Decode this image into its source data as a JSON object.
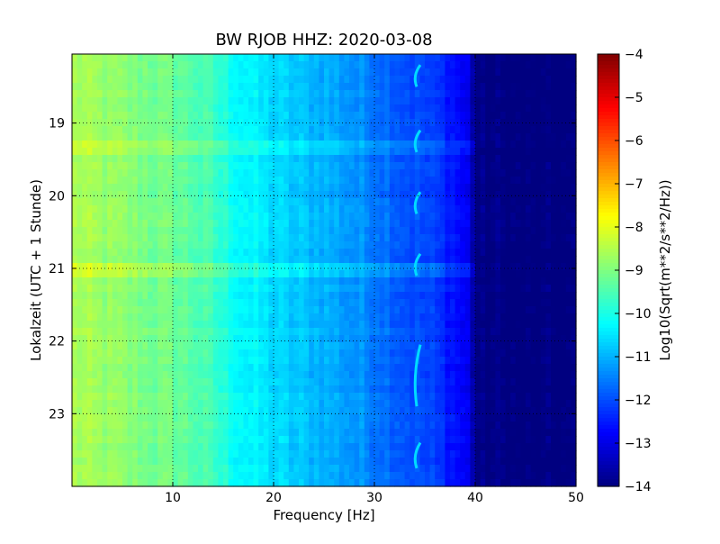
{
  "chart_data": {
    "type": "heatmap",
    "title": "BW RJOB HHZ: 2020-03-08",
    "xlabel": "Frequency [Hz]",
    "ylabel": "Lokalzeit (UTC + 1 Stunde)",
    "xlim": [
      0,
      50
    ],
    "ylim": [
      24,
      18.05
    ],
    "x_ticks": [
      10,
      20,
      30,
      40,
      50
    ],
    "x_tick_labels": [
      "10",
      "20",
      "30",
      "40",
      "50"
    ],
    "y_ticks": [
      19,
      20,
      21,
      22,
      23
    ],
    "y_tick_labels": [
      "19",
      "20",
      "21",
      "22",
      "23"
    ],
    "grid": true,
    "colorbar": {
      "label": "Log10(Sqrt(m**2/s**2/Hz))",
      "range": [
        -14,
        -4
      ],
      "ticks": [
        -4,
        -5,
        -6,
        -7,
        -8,
        -9,
        -10,
        -11,
        -12,
        -13,
        -14
      ],
      "tick_labels": [
        "−4",
        "−5",
        "−6",
        "−7",
        "−8",
        "−9",
        "−10",
        "−11",
        "−12",
        "−13",
        "−14"
      ],
      "colormap": "jet"
    },
    "spectrum_profile": {
      "frequency_hz": [
        0,
        2,
        5,
        8,
        10,
        12,
        14,
        16,
        18,
        20,
        22,
        25,
        28,
        30,
        33,
        36,
        38,
        39.5,
        40,
        42,
        45,
        50
      ],
      "value": [
        -8.6,
        -8.7,
        -8.9,
        -9.1,
        -9.2,
        -9.4,
        -9.7,
        -10.1,
        -10.4,
        -10.6,
        -10.8,
        -11.0,
        -11.3,
        -11.5,
        -11.9,
        -12.2,
        -12.6,
        -13.0,
        -14.0,
        -14.0,
        -14.1,
        -14.1
      ]
    },
    "horizontal_bands": [
      {
        "time_hour": 19.3,
        "boost": 0.35
      },
      {
        "time_hour": 21.05,
        "boost": 0.45
      }
    ],
    "tremor_line": {
      "frequency_hz": 34.2,
      "segments_hour": [
        [
          18.2,
          18.5
        ],
        [
          19.1,
          19.4
        ],
        [
          19.95,
          20.25
        ],
        [
          20.8,
          21.1
        ],
        [
          22.05,
          22.9
        ],
        [
          23.4,
          23.75
        ]
      ]
    }
  }
}
